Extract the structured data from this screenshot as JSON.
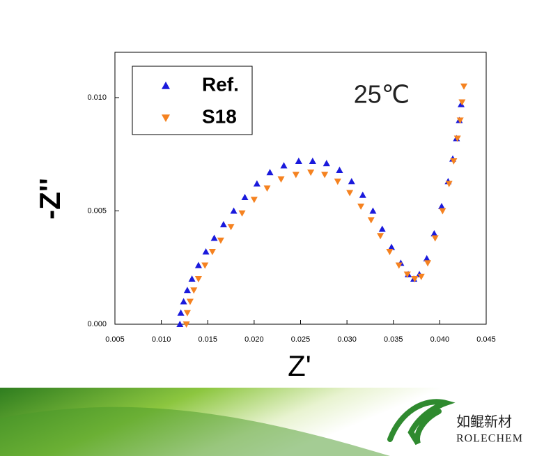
{
  "chart_data": {
    "type": "scatter",
    "annotation": "25℃",
    "xlabel": "Z'",
    "ylabel": "-Z''",
    "xlim": [
      0.005,
      0.045
    ],
    "xticks": [
      0.005,
      {
        "value": 0.01,
        "label": "0.010"
      },
      0.015,
      {
        "value": 0.02,
        "label": "0.020"
      },
      0.025,
      {
        "value": 0.03,
        "label": "0.030"
      },
      0.035,
      {
        "value": 0.04,
        "label": "0.040"
      },
      0.045
    ],
    "ylim": [
      0,
      0.012
    ],
    "yticks": [
      {
        "value": 0,
        "label": "0.000"
      },
      0.005,
      {
        "value": 0.01,
        "label": "0.010"
      }
    ],
    "legend": "top-left",
    "series": [
      {
        "name": "Ref.",
        "color": "#1a1adc",
        "marker": "triangle-up",
        "x": [
          0.012,
          0.0121,
          0.0124,
          0.0128,
          0.0133,
          0.014,
          0.0148,
          0.0157,
          0.0167,
          0.0178,
          0.019,
          0.0203,
          0.0217,
          0.0232,
          0.0248,
          0.0263,
          0.0278,
          0.0292,
          0.0305,
          0.0317,
          0.0328,
          0.0338,
          0.0348,
          0.0358,
          0.0366,
          0.0372,
          0.0378,
          0.0386,
          0.0394,
          0.0402,
          0.0409,
          0.0414,
          0.0418,
          0.0421,
          0.0423
        ],
        "values": [
          0.0,
          0.0005,
          0.001,
          0.0015,
          0.002,
          0.0026,
          0.0032,
          0.0038,
          0.0044,
          0.005,
          0.0056,
          0.0062,
          0.0067,
          0.007,
          0.0072,
          0.0072,
          0.0071,
          0.0068,
          0.0063,
          0.0057,
          0.005,
          0.0042,
          0.0034,
          0.0027,
          0.0022,
          0.002,
          0.0022,
          0.0029,
          0.004,
          0.0052,
          0.0063,
          0.0073,
          0.0082,
          0.009,
          0.0097
        ]
      },
      {
        "name": "S18",
        "color": "#f58220",
        "marker": "triangle-down",
        "x": [
          0.0127,
          0.0128,
          0.0131,
          0.0135,
          0.014,
          0.0147,
          0.0155,
          0.0164,
          0.0175,
          0.0187,
          0.02,
          0.0214,
          0.0229,
          0.0245,
          0.0261,
          0.0276,
          0.029,
          0.0303,
          0.0315,
          0.0326,
          0.0336,
          0.0346,
          0.0356,
          0.0365,
          0.0373,
          0.038,
          0.0387,
          0.0395,
          0.0403,
          0.041,
          0.0415,
          0.0419,
          0.0422,
          0.0424,
          0.0426
        ],
        "values": [
          0.0,
          0.0005,
          0.001,
          0.0015,
          0.002,
          0.0026,
          0.0032,
          0.0037,
          0.0043,
          0.0049,
          0.0055,
          0.006,
          0.0064,
          0.0066,
          0.0067,
          0.0066,
          0.0063,
          0.0058,
          0.0052,
          0.0046,
          0.0039,
          0.0032,
          0.0026,
          0.0022,
          0.002,
          0.0021,
          0.0027,
          0.0038,
          0.005,
          0.0062,
          0.0072,
          0.0082,
          0.009,
          0.0098,
          0.0105
        ]
      }
    ]
  },
  "logo": {
    "name_cn": "如鲲新材",
    "name_en": "ROLECHEM"
  }
}
